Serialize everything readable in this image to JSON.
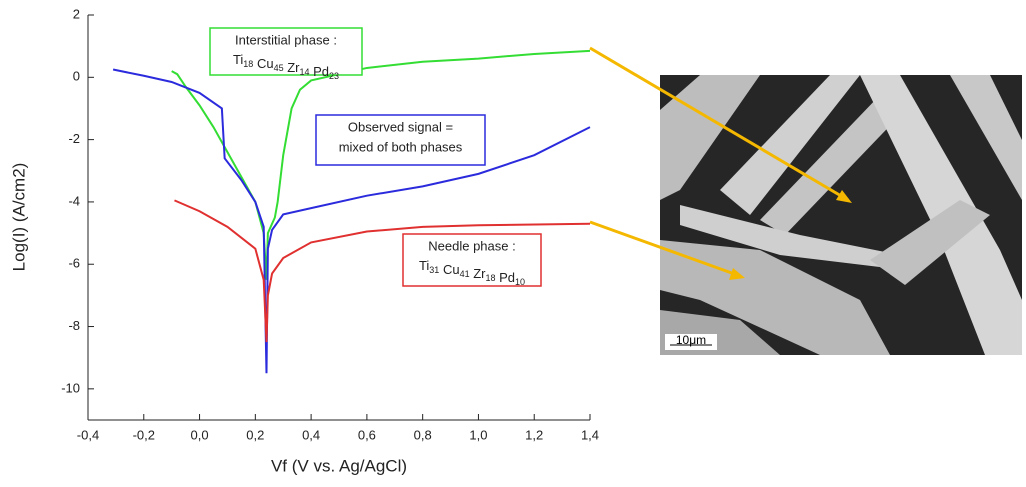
{
  "chart_data": {
    "type": "line",
    "xlabel": "Vf (V vs. Ag/AgCl)",
    "ylabel": "Log(I) (A/cm2)",
    "xlim": [
      -0.4,
      1.4
    ],
    "ylim": [
      -11,
      2
    ],
    "xticks": [
      {
        "value": -0.4,
        "label": "-0,4"
      },
      {
        "value": -0.2,
        "label": "-0,2"
      },
      {
        "value": 0,
        "label": "0,0"
      },
      {
        "value": 0.2,
        "label": "0,2"
      },
      {
        "value": 0.4,
        "label": "0,4"
      },
      {
        "value": 0.6,
        "label": "0,6"
      },
      {
        "value": 0.8,
        "label": "0,8"
      },
      {
        "value": 1.0,
        "label": "1,0"
      },
      {
        "value": 1.2,
        "label": "1,2"
      },
      {
        "value": 1.4,
        "label": "1,4"
      }
    ],
    "yticks": [
      2,
      0,
      -2,
      -4,
      -6,
      -8,
      -10
    ],
    "series": [
      {
        "color": "#33dd33",
        "x": [
          -0.1,
          -0.08,
          -0.05,
          0,
          0.05,
          0.1,
          0.15,
          0.2,
          0.23,
          0.24,
          0.245,
          0.27,
          0.28,
          0.3,
          0.33,
          0.36,
          0.4,
          0.6,
          0.8,
          1.0,
          1.2,
          1.4
        ],
        "values": [
          0.2,
          0.1,
          -0.3,
          -0.9,
          -1.6,
          -2.4,
          -3.2,
          -4,
          -5,
          -6.5,
          -5,
          -4.5,
          -4,
          -2.5,
          -1,
          -0.4,
          -0.1,
          0.3,
          0.5,
          0.6,
          0.75,
          0.85
        ]
      },
      {
        "color": "#2b2bdd",
        "x": [
          -0.31,
          -0.2,
          -0.1,
          0,
          0.08,
          0.09,
          0.15,
          0.2,
          0.23,
          0.24,
          0.245,
          0.26,
          0.3,
          0.4,
          0.6,
          0.8,
          1.0,
          1.2,
          1.4
        ],
        "values": [
          0.25,
          0.05,
          -0.15,
          -0.5,
          -1.0,
          -2.6,
          -3.3,
          -4,
          -4.8,
          -9.5,
          -5.5,
          -4.9,
          -4.4,
          -4.2,
          -3.8,
          -3.5,
          -3.1,
          -2.5,
          -1.6
        ]
      },
      {
        "color": "#e03030",
        "x": [
          -0.09,
          0,
          0.1,
          0.2,
          0.23,
          0.24,
          0.245,
          0.26,
          0.3,
          0.4,
          0.6,
          0.8,
          1.0,
          1.4
        ],
        "values": [
          -3.95,
          -4.3,
          -4.8,
          -5.5,
          -6.5,
          -8.5,
          -7,
          -6.3,
          -5.8,
          -5.3,
          -4.95,
          -4.8,
          -4.75,
          -4.7
        ]
      }
    ],
    "annotations": [
      {
        "color": "#33dd33",
        "lines": [
          "Interstitial phase :"
        ],
        "formula": [
          [
            "Ti",
            "18"
          ],
          [
            "Cu",
            "45"
          ],
          [
            "Zr",
            "14"
          ],
          [
            "Pd",
            "23"
          ]
        ]
      },
      {
        "color": "#2b2bdd",
        "lines": [
          "Observed signal =",
          "mixed of both phases"
        ]
      },
      {
        "color": "#e03030",
        "lines": [
          "Needle phase :"
        ],
        "formula": [
          [
            "Ti",
            "31"
          ],
          [
            "Cu",
            "41"
          ],
          [
            "Zr",
            "18"
          ],
          [
            "Pd",
            "10"
          ]
        ]
      }
    ],
    "image_scale_label": "10μm"
  }
}
